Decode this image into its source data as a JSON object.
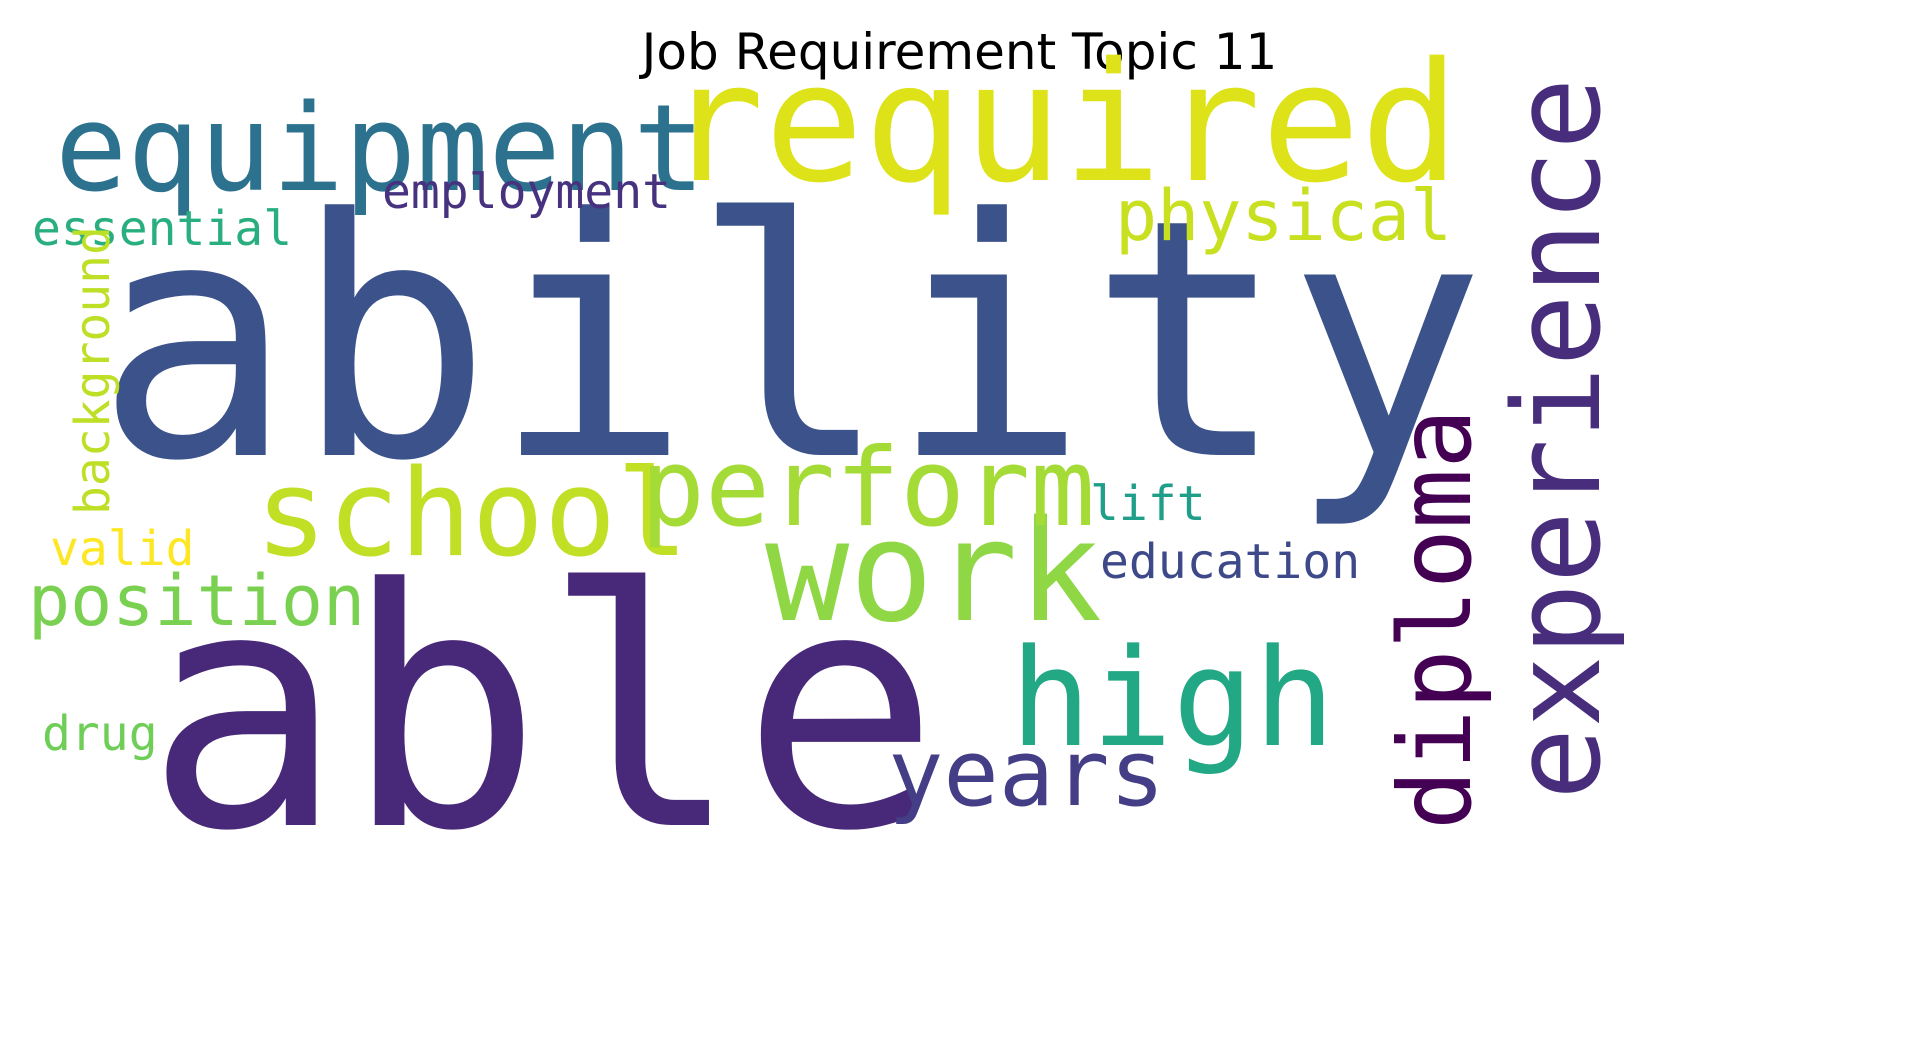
{
  "title": "Job Requirement Topic 11",
  "words": [
    {
      "text": "ability",
      "color": "#3b528b"
    },
    {
      "text": "able",
      "color": "#482878"
    },
    {
      "text": "required",
      "color": "#dde318"
    },
    {
      "text": "equipment",
      "color": "#2c728e"
    },
    {
      "text": "experience",
      "color": "#472d7b"
    },
    {
      "text": "work",
      "color": "#8fd744"
    },
    {
      "text": "school",
      "color": "#c0df25"
    },
    {
      "text": "perform",
      "color": "#a5db36"
    },
    {
      "text": "high",
      "color": "#22a884"
    },
    {
      "text": "diploma",
      "color": "#440154"
    },
    {
      "text": "years",
      "color": "#433e85"
    },
    {
      "text": "position",
      "color": "#7ad151"
    },
    {
      "text": "physical",
      "color": "#c8e020"
    },
    {
      "text": "employment",
      "color": "#46327e"
    },
    {
      "text": "essential",
      "color": "#29af7f"
    },
    {
      "text": "background",
      "color": "#bddf26"
    },
    {
      "text": "lift",
      "color": "#1f9e89"
    },
    {
      "text": "education",
      "color": "#3e4989"
    },
    {
      "text": "valid",
      "color": "#fde725"
    },
    {
      "text": "drug",
      "color": "#6ece58"
    }
  ]
}
